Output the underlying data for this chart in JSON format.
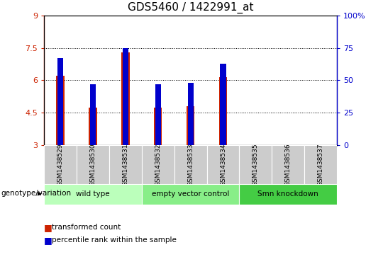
{
  "title": "GDS5460 / 1422991_at",
  "samples": [
    "GSM1438529",
    "GSM1438530",
    "GSM1438531",
    "GSM1438532",
    "GSM1438533",
    "GSM1438534",
    "GSM1438535",
    "GSM1438536",
    "GSM1438537"
  ],
  "transformed_counts": [
    6.2,
    4.75,
    7.3,
    4.75,
    4.8,
    6.15,
    null,
    null,
    null
  ],
  "percentile_ranks": [
    67,
    47,
    75,
    47,
    48,
    63,
    null,
    null,
    null
  ],
  "ylim_left": [
    3,
    9
  ],
  "yticks_left": [
    3,
    4.5,
    6,
    7.5,
    9
  ],
  "ytick_labels_left": [
    "3",
    "4.5",
    "6",
    "7.5",
    "9"
  ],
  "ylim_right": [
    0,
    100
  ],
  "yticks_right": [
    0,
    25,
    50,
    75,
    100
  ],
  "ytick_labels_right": [
    "0",
    "25",
    "50",
    "75",
    "100%"
  ],
  "grid_lines": [
    4.5,
    6.0,
    7.5
  ],
  "bar_color_red": "#cc2200",
  "bar_color_blue": "#0000cc",
  "red_bar_width": 0.25,
  "blue_bar_width": 0.18,
  "groups": [
    {
      "label": "wild type",
      "span": [
        0,
        3
      ],
      "color": "#bbffbb"
    },
    {
      "label": "empty vector control",
      "span": [
        3,
        6
      ],
      "color": "#88ee88"
    },
    {
      "label": "Smn knockdown",
      "span": [
        6,
        9
      ],
      "color": "#44cc44"
    }
  ],
  "group_label_prefix": "genotype/variation",
  "legend_red": "transformed count",
  "legend_blue": "percentile rank within the sample",
  "tick_bg_color": "#cccccc",
  "title_fontsize": 11,
  "axis_label_color_red": "#cc2200",
  "axis_label_color_blue": "#0000cc"
}
